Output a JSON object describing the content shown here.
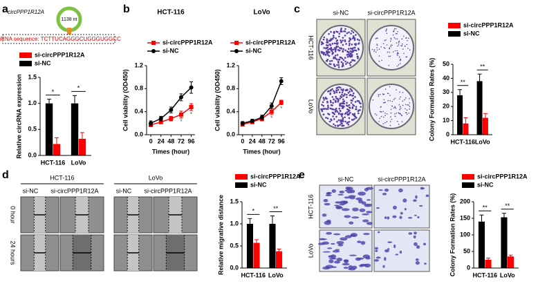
{
  "schematic": {
    "name": "circPPP1R12A",
    "size": "1138 nt",
    "sirna": "siRNA sequence: TCTTUCAGGGCUGGGUGGCC"
  },
  "images": {
    "c": {
      "columns": [
        "si-NC",
        "si-circPPP1R12A"
      ],
      "rows": [
        "HCT-116",
        "LoVo"
      ]
    },
    "d": {
      "groups": [
        "HCT-116",
        "LoVo"
      ],
      "columns": [
        "si-NC",
        "si-circPPP1R12A"
      ],
      "rows": [
        "0 hour",
        "24 hours"
      ]
    },
    "e": {
      "columns": [
        "si-NC",
        "si-circPPP1R12A"
      ],
      "rows": [
        "HCT-116",
        "LoVo"
      ]
    }
  },
  "chart_data": [
    {
      "panel": "a",
      "type": "bar",
      "ylabel": "Relative circRNA expression",
      "categories": [
        "HCT-116",
        "LoVo"
      ],
      "series": [
        {
          "name": "si-circPPP1R12A",
          "color": "#ff0000",
          "values": [
            0.22,
            0.32
          ],
          "errors": [
            0.12,
            0.12
          ]
        },
        {
          "name": "si-NC",
          "color": "#000000",
          "values": [
            1.0,
            1.0
          ],
          "errors": [
            0.08,
            0.15
          ]
        }
      ],
      "annotations": [
        "*",
        "*"
      ],
      "ylim": [
        0,
        1.5
      ],
      "yticks": [
        {
          "value": 0,
          "label": "0.0"
        },
        0.5,
        {
          "value": 1,
          "label": "1.0"
        },
        1.5
      ]
    },
    {
      "panel": "b",
      "type": "line",
      "title": "HCT-116",
      "xlabel": "Times (hour)",
      "ylabel": "Cell viability (OD450)",
      "x": [
        0,
        24,
        48,
        72,
        96
      ],
      "series": [
        {
          "name": "si-circPPP1R12A",
          "color": "#ff0000",
          "marker": "square",
          "values": [
            0.17,
            0.22,
            0.28,
            0.35,
            0.48
          ],
          "errors": [
            0.03,
            0.03,
            0.04,
            0.06,
            0.06
          ]
        },
        {
          "name": "si-NC",
          "color": "#000000",
          "marker": "circle",
          "values": [
            0.2,
            0.28,
            0.43,
            0.65,
            0.82
          ],
          "errors": [
            0.04,
            0.04,
            0.05,
            0.06,
            0.1
          ]
        }
      ],
      "annotations": [
        null,
        null,
        null,
        "*",
        "*"
      ],
      "xlim": [
        -10,
        105
      ],
      "xticks": [
        0,
        24,
        48,
        72,
        96
      ],
      "ylim": [
        0,
        1.2
      ],
      "yticks": [
        {
          "value": 0,
          "label": "0.0"
        },
        0.4,
        0.8,
        1.2
      ]
    },
    {
      "type": "line",
      "title": "LoVo",
      "xlabel": "Times (hour)",
      "ylabel": "Cell viability (OD450)",
      "x": [
        0,
        24,
        48,
        72,
        96
      ],
      "series": [
        {
          "name": "si-circPPP1R12A",
          "color": "#ff0000",
          "marker": "square",
          "values": [
            0.18,
            0.22,
            0.28,
            0.4,
            0.56
          ],
          "errors": [
            0.03,
            0.03,
            0.04,
            0.05,
            0.04
          ]
        },
        {
          "name": "si-NC",
          "color": "#000000",
          "marker": "circle",
          "values": [
            0.2,
            0.24,
            0.3,
            0.5,
            0.93
          ],
          "errors": [
            0.03,
            0.03,
            0.04,
            0.05,
            0.06
          ]
        }
      ],
      "annotations": [
        null,
        null,
        null,
        "*",
        "*"
      ],
      "xlim": [
        -10,
        105
      ],
      "xticks": [
        0,
        24,
        48,
        72,
        96
      ],
      "ylim": [
        0,
        1.2
      ],
      "yticks": [
        {
          "value": 0,
          "label": "0.0"
        },
        0.4,
        0.8,
        1.2
      ]
    },
    {
      "panel": "c",
      "type": "bar",
      "ylabel": "Colony Formation Rates (%)",
      "categories": [
        "HCT-116",
        "LoVo"
      ],
      "series": [
        {
          "name": "si-circPPP1R12A",
          "color": "#ff0000",
          "values": [
            8,
            12
          ],
          "errors": [
            4,
            3
          ]
        },
        {
          "name": "si-NC",
          "color": "#000000",
          "values": [
            28,
            38
          ],
          "errors": [
            4,
            5
          ]
        }
      ],
      "annotations": [
        "**",
        "**"
      ],
      "ylim": [
        0,
        50
      ],
      "yticks": [
        0,
        10,
        20,
        30,
        40,
        50
      ]
    },
    {
      "panel": "d",
      "type": "bar",
      "ylabel": "Relative migrative distance",
      "categories": [
        "HCT-116",
        "LoVo"
      ],
      "series": [
        {
          "name": "si-circPPP1R12A",
          "color": "#ff0000",
          "values": [
            0.57,
            0.38
          ],
          "errors": [
            0.07,
            0.05
          ]
        },
        {
          "name": "si-NC",
          "color": "#000000",
          "values": [
            1.0,
            1.0
          ],
          "errors": [
            0.12,
            0.18
          ]
        }
      ],
      "annotations": [
        "*",
        "**"
      ],
      "ylim": [
        0,
        1.5
      ],
      "yticks": [
        {
          "value": 0,
          "label": "0.0"
        },
        0.5,
        {
          "value": 1,
          "label": "1.0"
        },
        1.5
      ]
    },
    {
      "panel": "e",
      "type": "bar",
      "ylabel": "Colony Formation Rates (%)",
      "categories": [
        "HCT-116",
        "LoVo"
      ],
      "series": [
        {
          "name": "si-circPPP1R12A",
          "color": "#ff0000",
          "values": [
            25,
            35
          ],
          "errors": [
            5,
            4
          ]
        },
        {
          "name": "si-NC",
          "color": "#000000",
          "values": [
            140,
            153
          ],
          "errors": [
            20,
            12
          ]
        }
      ],
      "annotations": [
        "**",
        "**"
      ],
      "ylim": [
        0,
        200
      ],
      "yticks": [
        0,
        50,
        100,
        150,
        200
      ]
    }
  ]
}
